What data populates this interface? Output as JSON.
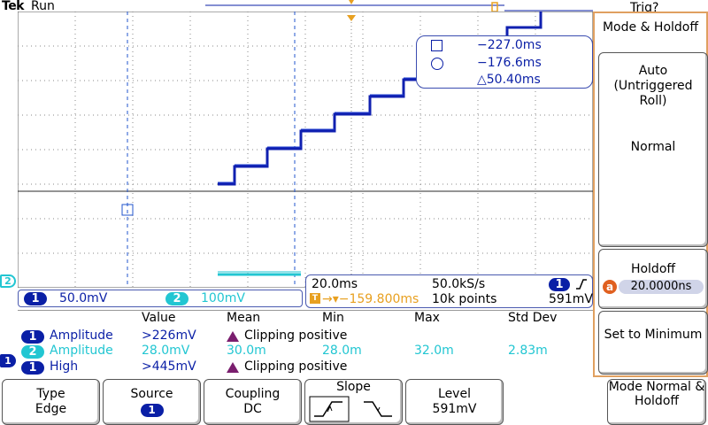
{
  "header": {
    "brand": "Tek",
    "status": "Run",
    "trigger_status": "Trig?"
  },
  "markers": {
    "channel2": "2",
    "channel1": "1"
  },
  "cursors": {
    "a": "−227.0ms",
    "b": "−176.6ms",
    "delta": "△50.40ms"
  },
  "side_menu": {
    "title": "Mode & Holdoff",
    "auto_label": "Auto (Untriggered Roll)",
    "normal_label": "Normal",
    "holdoff_label": "Holdoff",
    "holdoff_badge": "a",
    "holdoff_value": "20.0000ns",
    "set_min_label": "Set to Minimum"
  },
  "channels": {
    "ch1": {
      "num": "1",
      "scale": "50.0mV"
    },
    "ch2": {
      "num": "2",
      "scale": "100mV"
    }
  },
  "timebase": {
    "time_div": "20.0ms",
    "sample_rate": "50.0kS/s",
    "trig_pos": "→▾−159.800ms",
    "points": "10k points",
    "trig_src": "1",
    "trig_level": "591mV"
  },
  "measurements": {
    "headers": {
      "value": "Value",
      "mean": "Mean",
      "min": "Min",
      "max": "Max",
      "std": "Std Dev"
    },
    "rows": [
      {
        "src": "1",
        "name": "Amplitude",
        "value": ">226mV",
        "clip": "Clipping positive"
      },
      {
        "src": "2",
        "name": "Amplitude",
        "value": "28.0mV",
        "mean": "30.0m",
        "min": "28.0m",
        "max": "32.0m",
        "std": "2.83m"
      },
      {
        "src": "1",
        "name": "High",
        "value": ">445mV",
        "clip": "Clipping positive"
      }
    ]
  },
  "bottom_menu": {
    "type_label": "Type",
    "type_value": "Edge",
    "source_label": "Source",
    "source_value": "1",
    "coupling_label": "Coupling",
    "coupling_value": "DC",
    "slope_label": "Slope",
    "level_label": "Level",
    "level_value": "591mV",
    "mode_label": "Mode Normal & Holdoff"
  },
  "colors": {
    "ch1": "#0a1fa6",
    "ch2": "#22c6d2",
    "trigger": "#e8a020",
    "menu_border": "#e0a060"
  }
}
